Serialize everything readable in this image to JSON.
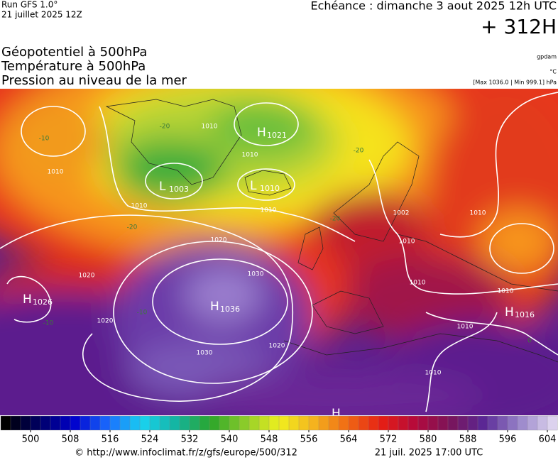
{
  "header": {
    "model": "Run GFS 1.0°",
    "run": "21 juillet 2025 12Z",
    "valid": "Echéance : dimanche 3 aout 2025 12h UTC",
    "lead": "+ 312H"
  },
  "fields": [
    "Géopotentiel à 500hPa",
    "Température à 500hPa",
    "Pression au niveau de la mer"
  ],
  "units": [
    "gpdam",
    "°C",
    "[Max 1036.0 | Min 999.1] hPa"
  ],
  "centers": [
    {
      "letter": "H",
      "value": 1021
    },
    {
      "letter": "L",
      "value": 1003
    },
    {
      "letter": "L",
      "value": 1010
    },
    {
      "letter": "H",
      "value": 1026
    },
    {
      "letter": "H",
      "value": 1036
    },
    {
      "letter": "H",
      "value": 1016
    },
    {
      "letter": "H",
      "value": null
    }
  ],
  "isobar_labels": [
    1010,
    1010,
    1010,
    1010,
    1010,
    1020,
    1020,
    1020,
    1030,
    1030,
    1020,
    1002,
    1010,
    1010,
    1010,
    1010,
    1010,
    1010
  ],
  "temperature_labels": [
    -10,
    -20,
    -20,
    -20,
    -10,
    -10,
    -20,
    0
  ],
  "colorbar": {
    "range": [
      494,
      606
    ],
    "ticks": [
      500,
      508,
      516,
      524,
      532,
      540,
      548,
      556,
      564,
      572,
      580,
      588,
      596,
      604
    ],
    "colors": [
      "#000000",
      "#000066",
      "#0000cc",
      "#1a6cff",
      "#19d2f0",
      "#14b4a0",
      "#2aa52a",
      "#8ccc2a",
      "#f0f01e",
      "#f5b41e",
      "#f06a14",
      "#e61e14",
      "#b40a3c",
      "#7a145a",
      "#5a2896",
      "#9682c8",
      "#dcd2ee"
    ]
  },
  "footer": {
    "source": "© http://www.infoclimat.fr/z/gfs/europe/500/312",
    "date": "21 juil. 2025 17:00 UTC"
  }
}
